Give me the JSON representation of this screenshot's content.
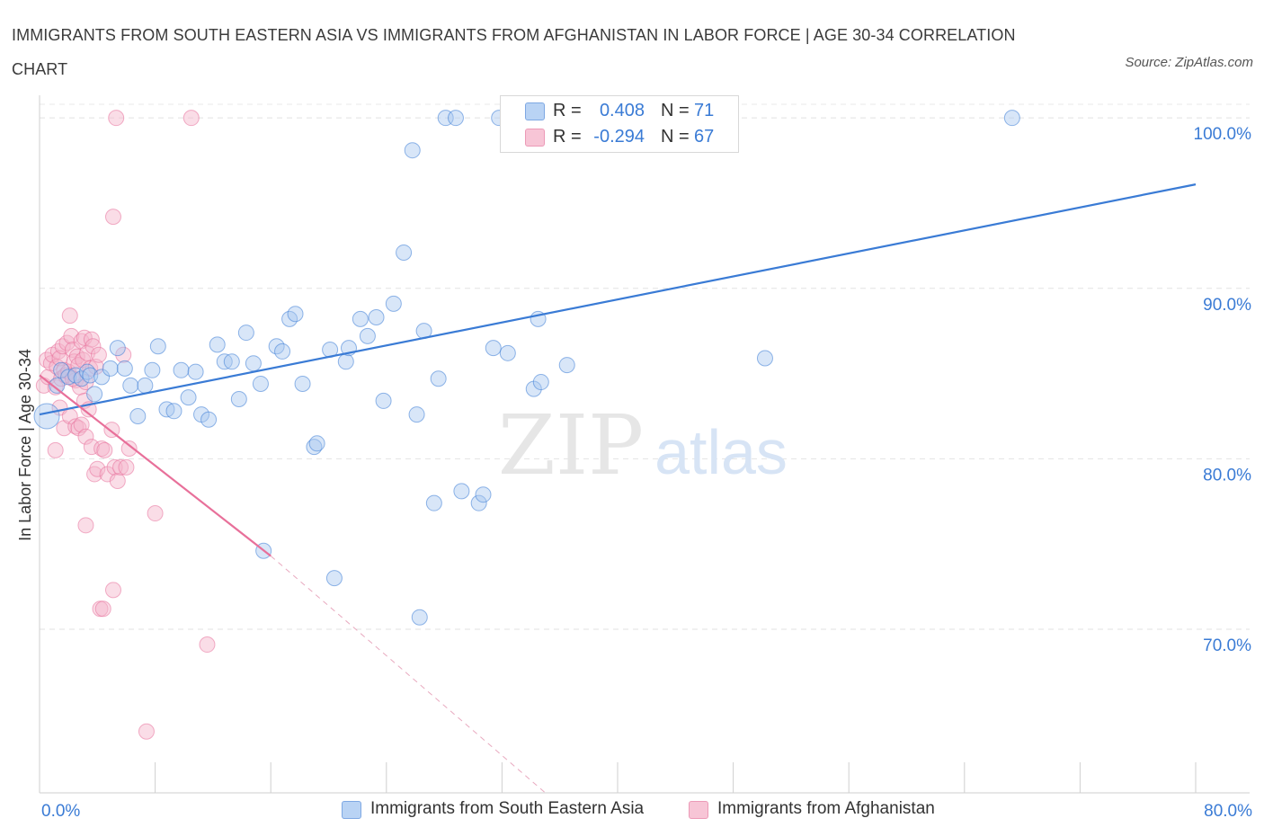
{
  "title": "IMMIGRANTS FROM SOUTH EASTERN ASIA VS IMMIGRANTS FROM AFGHANISTAN IN LABOR FORCE | AGE 30-34 CORRELATION CHART",
  "source": "Source: ZipAtlas.com",
  "watermark": {
    "zip": "ZIP",
    "atlas": "atlas"
  },
  "colors": {
    "blue": "#3a7bd5",
    "blue_fill": "#a9c8f0",
    "pink": "#e8709a",
    "pink_fill": "#f4b3c9",
    "value_text": "#3a7bd5"
  },
  "legend": {
    "series": [
      {
        "r_label": "R =",
        "r_value": "0.408",
        "n_label": "N =",
        "n_value": "71"
      },
      {
        "r_label": "R =",
        "r_value": "-0.294",
        "n_label": "N =",
        "n_value": "67"
      }
    ]
  },
  "bottom_legend": [
    "Immigrants from South Eastern Asia",
    "Immigrants from Afghanistan"
  ],
  "chart_data": {
    "type": "scatter",
    "title": "IMMIGRANTS FROM SOUTH EASTERN ASIA VS IMMIGRANTS FROM AFGHANISTAN IN LABOR FORCE | AGE 30-34 CORRELATION CHART",
    "xlabel": "",
    "ylabel": "In Labor Force | Age 30-34",
    "xlim": [
      0,
      80
    ],
    "ylim": [
      60.4,
      100.8
    ],
    "x_tick_labels": [
      {
        "value": 0,
        "label": "0.0%"
      },
      {
        "value": 80,
        "label": "80.0%"
      }
    ],
    "x_minor_ticks": [
      8,
      16,
      24,
      32,
      40,
      48,
      56,
      64,
      72,
      80
    ],
    "y_ticks": [
      {
        "value": 100,
        "label": "100.0%"
      },
      {
        "value": 90,
        "label": "90.0%"
      },
      {
        "value": 80,
        "label": "80.0%"
      },
      {
        "value": 70,
        "label": "70.0%"
      }
    ],
    "grid": true,
    "legend_position": "top-center",
    "series": [
      {
        "name": "Immigrants from South Eastern Asia",
        "color": "#3a7bd5",
        "trendline": {
          "x": [
            0,
            80
          ],
          "y": [
            82.6,
            96.1
          ],
          "style": "solid"
        },
        "points": [
          [
            0.5,
            82.5
          ],
          [
            1.2,
            84.3
          ],
          [
            1.5,
            85.2
          ],
          [
            2.0,
            84.8
          ],
          [
            2.5,
            84.9
          ],
          [
            2.9,
            84.7
          ],
          [
            3.3,
            85.1
          ],
          [
            3.5,
            84.9
          ],
          [
            3.8,
            83.8
          ],
          [
            4.3,
            84.8
          ],
          [
            4.9,
            85.3
          ],
          [
            5.4,
            86.5
          ],
          [
            5.9,
            85.3
          ],
          [
            6.3,
            84.3
          ],
          [
            6.8,
            82.5
          ],
          [
            7.3,
            84.3
          ],
          [
            7.8,
            85.2
          ],
          [
            8.2,
            86.6
          ],
          [
            8.8,
            82.9
          ],
          [
            9.3,
            82.8
          ],
          [
            9.8,
            85.2
          ],
          [
            10.3,
            83.6
          ],
          [
            10.8,
            85.1
          ],
          [
            11.2,
            82.6
          ],
          [
            11.7,
            82.3
          ],
          [
            12.3,
            86.7
          ],
          [
            12.8,
            85.7
          ],
          [
            13.3,
            85.7
          ],
          [
            13.8,
            83.5
          ],
          [
            14.3,
            87.4
          ],
          [
            14.8,
            85.6
          ],
          [
            15.3,
            84.4
          ],
          [
            15.5,
            74.6
          ],
          [
            16.4,
            86.6
          ],
          [
            16.8,
            86.3
          ],
          [
            17.3,
            88.2
          ],
          [
            17.7,
            88.5
          ],
          [
            18.2,
            84.4
          ],
          [
            19.0,
            80.7
          ],
          [
            19.2,
            80.9
          ],
          [
            20.1,
            86.4
          ],
          [
            20.4,
            73.0
          ],
          [
            21.2,
            85.7
          ],
          [
            21.4,
            86.5
          ],
          [
            22.2,
            88.2
          ],
          [
            22.7,
            87.2
          ],
          [
            23.3,
            88.3
          ],
          [
            23.8,
            83.4
          ],
          [
            24.5,
            89.1
          ],
          [
            25.2,
            92.1
          ],
          [
            26.1,
            82.6
          ],
          [
            25.8,
            98.1
          ],
          [
            26.3,
            70.7
          ],
          [
            26.6,
            87.5
          ],
          [
            27.3,
            77.4
          ],
          [
            27.6,
            84.7
          ],
          [
            28.1,
            100.0
          ],
          [
            28.8,
            100.0
          ],
          [
            29.2,
            78.1
          ],
          [
            30.4,
            77.4
          ],
          [
            30.7,
            77.9
          ],
          [
            31.4,
            86.5
          ],
          [
            31.8,
            100.0
          ],
          [
            32.4,
            86.2
          ],
          [
            34.2,
            84.1
          ],
          [
            34.7,
            84.5
          ],
          [
            34.5,
            88.2
          ],
          [
            36.5,
            85.5
          ],
          [
            43.5,
            100.0
          ],
          [
            50.2,
            85.9
          ],
          [
            67.3,
            100.0
          ]
        ]
      },
      {
        "name": "Immigrants from Afghanistan",
        "color": "#e8709a",
        "trendline": {
          "x": [
            0,
            16
          ],
          "y": [
            84.9,
            74.3
          ],
          "style": "solid",
          "dashed_extension": {
            "x": [
              16,
              35
            ],
            "y": [
              74.3,
              60.4
            ]
          }
        },
        "points": [
          [
            0.3,
            84.3
          ],
          [
            0.5,
            85.8
          ],
          [
            0.6,
            84.8
          ],
          [
            0.8,
            85.6
          ],
          [
            0.9,
            86.1
          ],
          [
            1.1,
            84.2
          ],
          [
            1.2,
            85.4
          ],
          [
            1.3,
            86.3
          ],
          [
            1.4,
            85.9
          ],
          [
            1.5,
            84.7
          ],
          [
            1.6,
            86.6
          ],
          [
            1.7,
            85.2
          ],
          [
            1.8,
            84.9
          ],
          [
            1.9,
            86.8
          ],
          [
            2.0,
            85.1
          ],
          [
            2.1,
            88.4
          ],
          [
            2.2,
            87.2
          ],
          [
            2.3,
            86.4
          ],
          [
            2.4,
            85.7
          ],
          [
            2.5,
            84.6
          ],
          [
            2.6,
            86.0
          ],
          [
            2.7,
            85.5
          ],
          [
            2.8,
            84.2
          ],
          [
            2.9,
            86.9
          ],
          [
            3.0,
            85.8
          ],
          [
            3.1,
            87.1
          ],
          [
            3.2,
            84.5
          ],
          [
            3.3,
            86.2
          ],
          [
            3.5,
            85.3
          ],
          [
            3.6,
            87.0
          ],
          [
            3.7,
            86.6
          ],
          [
            3.9,
            85.4
          ],
          [
            4.1,
            86.1
          ],
          [
            1.1,
            80.5
          ],
          [
            1.4,
            83.0
          ],
          [
            1.7,
            81.8
          ],
          [
            2.1,
            82.5
          ],
          [
            2.3,
            84.7
          ],
          [
            2.5,
            81.9
          ],
          [
            2.7,
            81.8
          ],
          [
            2.9,
            82.0
          ],
          [
            3.1,
            83.4
          ],
          [
            3.2,
            81.3
          ],
          [
            3.4,
            82.9
          ],
          [
            3.6,
            80.7
          ],
          [
            3.8,
            79.1
          ],
          [
            4.0,
            79.4
          ],
          [
            4.3,
            80.6
          ],
          [
            4.5,
            80.5
          ],
          [
            4.7,
            79.1
          ],
          [
            5.0,
            81.7
          ],
          [
            5.2,
            79.5
          ],
          [
            5.4,
            78.7
          ],
          [
            5.6,
            79.5
          ],
          [
            5.8,
            86.1
          ],
          [
            6.0,
            79.5
          ],
          [
            6.2,
            80.6
          ],
          [
            3.2,
            76.1
          ],
          [
            4.2,
            71.2
          ],
          [
            4.4,
            71.2
          ],
          [
            5.1,
            72.3
          ],
          [
            8.0,
            76.8
          ],
          [
            7.4,
            64.0
          ],
          [
            11.6,
            69.1
          ],
          [
            5.1,
            94.2
          ],
          [
            5.3,
            100.0
          ],
          [
            10.5,
            100.0
          ]
        ]
      }
    ]
  }
}
